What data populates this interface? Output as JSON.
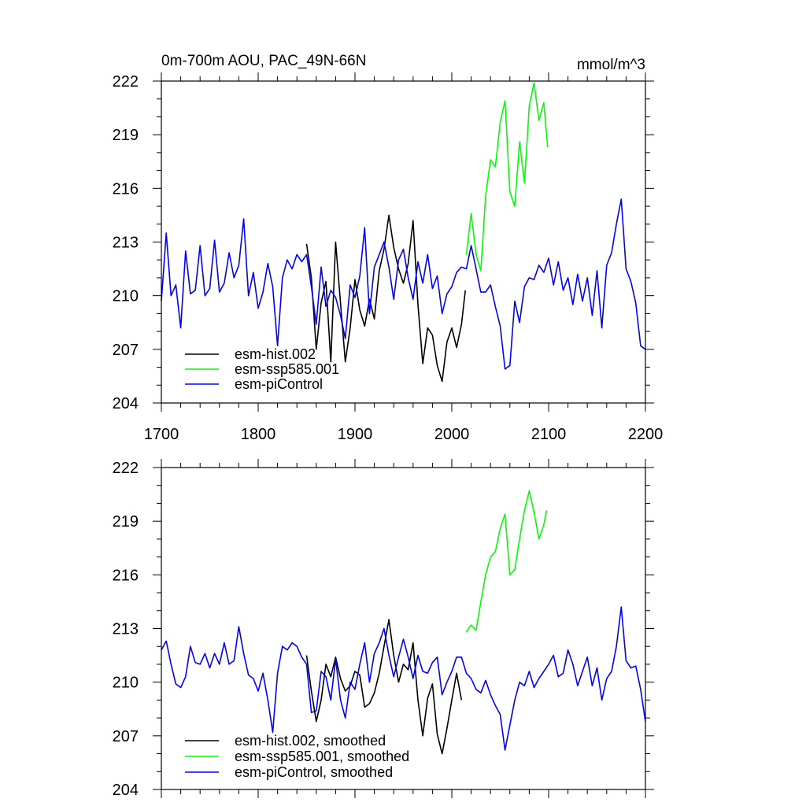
{
  "chart_data": [
    {
      "type": "line",
      "title_left": "0m-700m AOU, PAC_49N-66N",
      "title_right": "mmol/m^3",
      "xlim": [
        1700,
        2200
      ],
      "ylim": [
        204,
        222
      ],
      "xticks": [
        1700,
        1800,
        1900,
        2000,
        2100,
        2200
      ],
      "yticks": [
        204,
        207,
        210,
        213,
        216,
        219,
        222
      ],
      "xtick_labels": [
        "1700",
        "1800",
        "1900",
        "2000",
        "2100",
        "2200"
      ],
      "ytick_labels": [
        "204",
        "207",
        "210",
        "213",
        "216",
        "219",
        "222"
      ],
      "legend": [
        "esm-hist.002",
        "esm-ssp585.001",
        "esm-piControl"
      ],
      "series": [
        {
          "name": "esm-hist.002",
          "color": "#000000",
          "x": [
            1850,
            1855,
            1860,
            1865,
            1870,
            1875,
            1880,
            1885,
            1890,
            1895,
            1900,
            1905,
            1910,
            1915,
            1920,
            1925,
            1930,
            1935,
            1940,
            1945,
            1950,
            1955,
            1960,
            1965,
            1970,
            1975,
            1980,
            1985,
            1990,
            1995,
            2000,
            2005,
            2010,
            2014
          ],
          "values": [
            212.9,
            211.0,
            207.0,
            209.6,
            210.8,
            206.3,
            213.0,
            209.6,
            206.3,
            208.2,
            210.9,
            209.2,
            208.3,
            209.8,
            208.7,
            211.4,
            212.6,
            214.5,
            212.7,
            211.5,
            210.7,
            211.8,
            214.2,
            209.5,
            206.2,
            208.2,
            207.8,
            206.1,
            205.2,
            207.4,
            208.2,
            207.1,
            208.4,
            210.3
          ]
        },
        {
          "name": "esm-ssp585.001",
          "color": "#00ff00",
          "x": [
            2015,
            2020,
            2025,
            2030,
            2035,
            2040,
            2045,
            2050,
            2055,
            2060,
            2065,
            2070,
            2075,
            2080,
            2085,
            2090,
            2095,
            2099
          ],
          "values": [
            212.3,
            214.6,
            212.3,
            211.4,
            215.6,
            217.6,
            217.2,
            219.7,
            220.9,
            215.8,
            215.0,
            218.6,
            216.3,
            220.6,
            221.9,
            219.8,
            220.8,
            218.3
          ]
        },
        {
          "name": "esm-piControl",
          "color": "#0000ff",
          "x": [
            1700,
            1705,
            1710,
            1715,
            1720,
            1725,
            1730,
            1735,
            1740,
            1745,
            1750,
            1755,
            1760,
            1765,
            1770,
            1775,
            1780,
            1785,
            1790,
            1795,
            1800,
            1805,
            1810,
            1815,
            1820,
            1825,
            1830,
            1835,
            1840,
            1845,
            1850,
            1855,
            1860,
            1865,
            1870,
            1875,
            1880,
            1885,
            1890,
            1895,
            1900,
            1905,
            1910,
            1915,
            1920,
            1925,
            1930,
            1935,
            1940,
            1945,
            1950,
            1955,
            1960,
            1965,
            1970,
            1975,
            1980,
            1985,
            1990,
            1995,
            2000,
            2005,
            2010,
            2015,
            2020,
            2025,
            2030,
            2035,
            2040,
            2045,
            2050,
            2055,
            2060,
            2065,
            2070,
            2075,
            2080,
            2085,
            2090,
            2095,
            2100,
            2105,
            2110,
            2115,
            2120,
            2125,
            2130,
            2135,
            2140,
            2145,
            2150,
            2155,
            2160,
            2165,
            2170,
            2175,
            2180,
            2185,
            2190,
            2195,
            2200
          ],
          "values": [
            209.7,
            213.5,
            210.0,
            210.6,
            208.2,
            212.5,
            210.1,
            210.3,
            212.8,
            210.0,
            210.4,
            213.1,
            210.2,
            210.7,
            212.4,
            211.0,
            211.7,
            214.3,
            210.0,
            211.3,
            209.3,
            210.2,
            211.8,
            210.5,
            207.2,
            211.0,
            212.0,
            211.5,
            212.3,
            211.9,
            212.3,
            210.5,
            208.4,
            211.6,
            209.4,
            210.3,
            209.9,
            208.9,
            207.6,
            210.6,
            209.9,
            211.1,
            213.8,
            209.0,
            211.6,
            212.3,
            213.0,
            211.6,
            209.8,
            212.0,
            212.6,
            211.0,
            209.8,
            211.9,
            210.7,
            212.3,
            210.4,
            211.1,
            209.0,
            210.1,
            210.5,
            211.3,
            211.6,
            211.5,
            212.8,
            211.5,
            210.2,
            210.2,
            210.6,
            209.4,
            208.3,
            205.9,
            206.1,
            209.7,
            208.5,
            210.5,
            211.0,
            210.9,
            211.7,
            211.3,
            212.1,
            210.6,
            211.9,
            210.3,
            211.0,
            209.5,
            211.2,
            209.7,
            211.0,
            208.9,
            211.4,
            208.2,
            211.7,
            212.4,
            214.0,
            215.4,
            211.5,
            210.8,
            209.6,
            207.2,
            207.0
          ]
        }
      ]
    },
    {
      "type": "line",
      "title_left": "",
      "title_right": "",
      "xlim": [
        1700,
        2200
      ],
      "ylim": [
        204,
        222
      ],
      "xticks": [
        1700,
        1800,
        1900,
        2000,
        2100,
        2200
      ],
      "yticks": [
        204,
        207,
        210,
        213,
        216,
        219,
        222
      ],
      "xtick_labels": [],
      "ytick_labels": [
        "204",
        "207",
        "210",
        "213",
        "216",
        "219",
        "222"
      ],
      "legend": [
        "esm-hist.002, smoothed",
        "esm-ssp585.001, smoothed",
        "esm-piControl, smoothed"
      ],
      "series": [
        {
          "name": "esm-hist.002, smoothed",
          "color": "#000000",
          "x": [
            1850,
            1855,
            1860,
            1865,
            1870,
            1875,
            1880,
            1885,
            1890,
            1895,
            1900,
            1905,
            1910,
            1915,
            1920,
            1925,
            1930,
            1935,
            1940,
            1945,
            1950,
            1955,
            1960,
            1965,
            1970,
            1975,
            1980,
            1985,
            1990,
            1995,
            2000,
            2005,
            2010
          ],
          "values": [
            211.5,
            209.5,
            207.8,
            209.0,
            211.0,
            210.3,
            211.4,
            210.2,
            209.5,
            209.8,
            210.6,
            210.4,
            208.6,
            208.8,
            209.4,
            210.5,
            212.0,
            213.5,
            211.5,
            210.0,
            211.0,
            210.7,
            212.2,
            209.0,
            207.0,
            209.1,
            209.9,
            207.1,
            206.0,
            207.4,
            209.0,
            210.5,
            209.0
          ]
        },
        {
          "name": "esm-ssp585.001, smoothed",
          "color": "#00ff00",
          "x": [
            2015,
            2020,
            2025,
            2030,
            2035,
            2040,
            2045,
            2050,
            2055,
            2060,
            2065,
            2070,
            2075,
            2080,
            2085,
            2090,
            2095,
            2098
          ],
          "values": [
            212.8,
            213.2,
            212.9,
            214.5,
            216.0,
            217.0,
            217.3,
            218.6,
            219.4,
            216.0,
            216.3,
            218.0,
            219.6,
            220.7,
            219.5,
            218.0,
            218.8,
            219.6
          ]
        },
        {
          "name": "esm-piControl, smoothed",
          "color": "#0000ff",
          "x": [
            1700,
            1705,
            1710,
            1715,
            1720,
            1725,
            1730,
            1735,
            1740,
            1745,
            1750,
            1755,
            1760,
            1765,
            1770,
            1775,
            1780,
            1785,
            1790,
            1795,
            1800,
            1805,
            1810,
            1815,
            1820,
            1825,
            1830,
            1835,
            1840,
            1845,
            1850,
            1855,
            1860,
            1865,
            1870,
            1875,
            1880,
            1885,
            1890,
            1895,
            1900,
            1905,
            1910,
            1915,
            1920,
            1925,
            1930,
            1935,
            1940,
            1945,
            1950,
            1955,
            1960,
            1965,
            1970,
            1975,
            1980,
            1985,
            1990,
            1995,
            2000,
            2005,
            2010,
            2015,
            2020,
            2025,
            2030,
            2035,
            2040,
            2045,
            2050,
            2055,
            2060,
            2065,
            2070,
            2075,
            2080,
            2085,
            2090,
            2095,
            2100,
            2105,
            2110,
            2115,
            2120,
            2125,
            2130,
            2135,
            2140,
            2145,
            2150,
            2155,
            2160,
            2165,
            2170,
            2175,
            2180,
            2185,
            2190,
            2195,
            2200
          ],
          "values": [
            211.8,
            212.3,
            211.0,
            209.9,
            209.7,
            210.3,
            212.0,
            211.1,
            211.0,
            211.6,
            210.8,
            211.6,
            211.0,
            212.2,
            211.0,
            211.2,
            213.1,
            211.6,
            210.4,
            210.2,
            209.5,
            210.5,
            209.0,
            207.2,
            210.5,
            212.0,
            211.8,
            212.2,
            212.0,
            211.4,
            211.0,
            208.3,
            208.4,
            210.6,
            210.3,
            209.0,
            211.3,
            209.0,
            208.0,
            210.0,
            209.6,
            211.0,
            212.2,
            210.0,
            211.6,
            212.2,
            213.0,
            211.5,
            210.3,
            211.4,
            212.4,
            211.4,
            210.2,
            211.5,
            210.6,
            210.5,
            211.1,
            211.4,
            209.3,
            210.0,
            210.6,
            211.4,
            211.4,
            210.5,
            210.2,
            209.6,
            209.4,
            210.1,
            209.3,
            208.7,
            208.2,
            206.2,
            207.6,
            209.0,
            210.0,
            209.8,
            210.6,
            209.7,
            210.2,
            210.6,
            211.0,
            211.5,
            210.3,
            210.5,
            211.8,
            211.0,
            209.8,
            210.6,
            211.4,
            209.8,
            210.8,
            209.0,
            210.2,
            210.6,
            212.0,
            214.2,
            211.2,
            210.8,
            210.9,
            209.6,
            207.8
          ]
        }
      ]
    }
  ]
}
